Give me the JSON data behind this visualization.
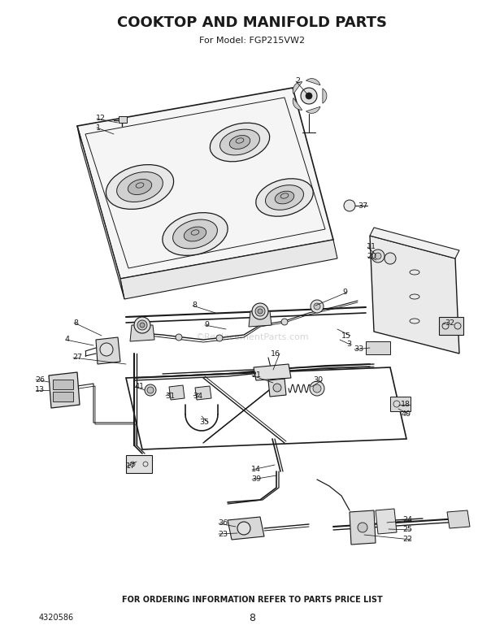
{
  "title": "COOKTOP AND MANIFOLD PARTS",
  "subtitle": "For Model: FGP215VW2",
  "bottom_text": "FOR ORDERING INFORMATION REFER TO PARTS PRICE LIST",
  "page_num": "8",
  "part_num": "4320586",
  "bg_color": "#ffffff",
  "line_color": "#1a1a1a",
  "fig_width": 6.2,
  "fig_height": 7.85,
  "dpi": 100
}
